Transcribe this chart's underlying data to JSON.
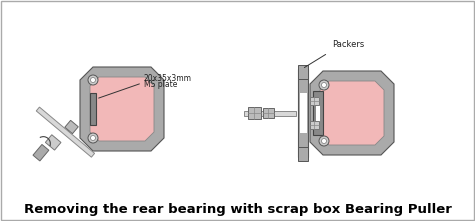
{
  "title": "Removing the rear bearing with scrap box Bearing Puller",
  "title_fontsize": 9.5,
  "bg_color": "#ffffff",
  "gray": "#aaaaaa",
  "dark_gray": "#888888",
  "med_gray": "#999999",
  "pink": "#f2b8b8",
  "white": "#ffffff",
  "light_gray": "#cccccc",
  "border_color": "#888888",
  "label1_text": "20x35x3mm",
  "label1b_text": "MS plate",
  "label2_text": "Packers",
  "ann_color": "#333333",
  "fig_w": 4.75,
  "fig_h": 2.21,
  "dpi": 100
}
